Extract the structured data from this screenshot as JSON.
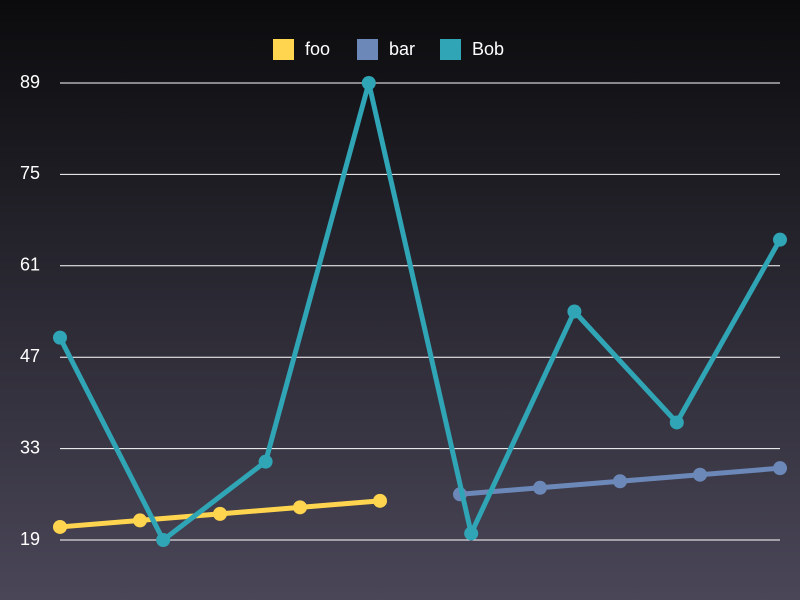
{
  "chart_data": {
    "type": "line",
    "series": [
      {
        "name": "foo",
        "color": "#ffd54f",
        "x": [
          0,
          1,
          2,
          3,
          4
        ],
        "values": [
          21,
          22,
          23,
          24,
          25
        ]
      },
      {
        "name": "bar",
        "color": "#6b88b8",
        "x": [
          5,
          6,
          7,
          8,
          9
        ],
        "values": [
          26,
          27,
          28,
          29,
          30
        ]
      },
      {
        "name": "Bob",
        "color": "#30a5b5",
        "x": [
          0,
          1.29,
          2.57,
          3.86,
          5.14,
          6.43,
          7.71,
          9
        ],
        "values": [
          50,
          19,
          31,
          89,
          20,
          54,
          37,
          65
        ]
      }
    ],
    "xlim": [
      0,
      9
    ],
    "ylim": [
      19,
      89
    ],
    "yticks": [
      19,
      33,
      47,
      61,
      75,
      89
    ],
    "grid": true,
    "legend": "top"
  }
}
